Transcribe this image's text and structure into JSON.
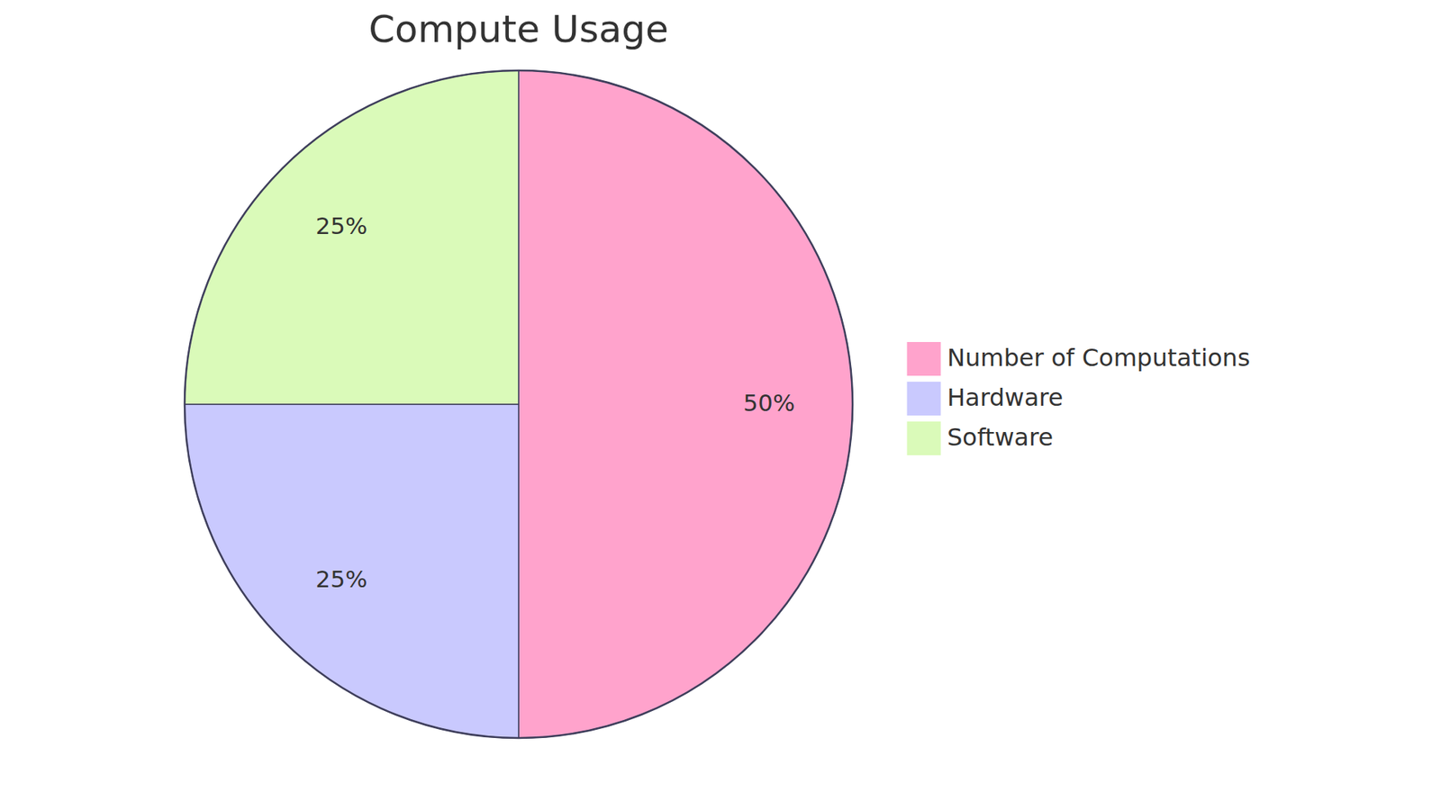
{
  "chart_data": {
    "type": "pie",
    "title": "Compute Usage",
    "categories": [
      "Number of Computations",
      "Hardware",
      "Software"
    ],
    "values": [
      50,
      25,
      25
    ],
    "value_labels": [
      "50%",
      "25%",
      "25%"
    ],
    "colors": [
      "#ffa3cc",
      "#c9c9fe",
      "#dafab9"
    ],
    "data_labels": true,
    "legend": "right"
  }
}
